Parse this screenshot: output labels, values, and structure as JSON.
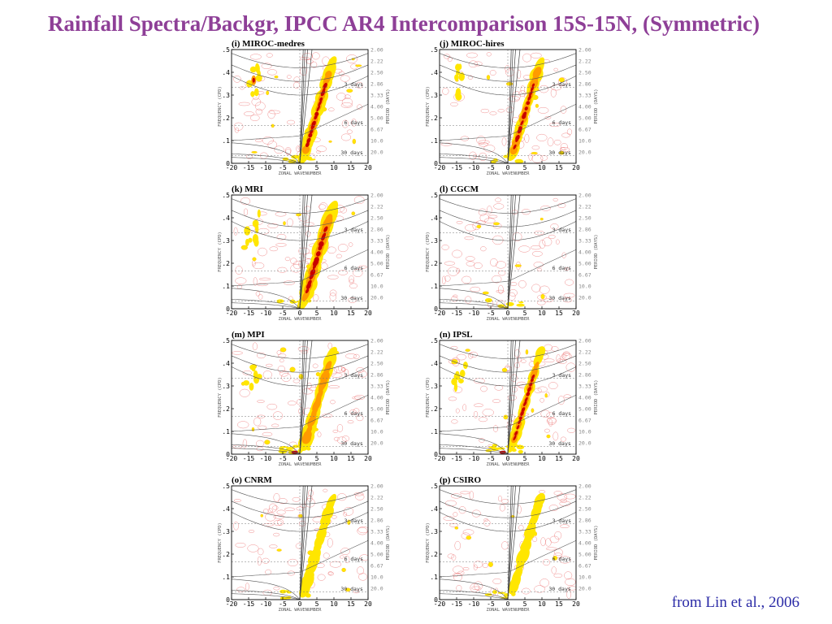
{
  "title": "Rainfall  Spectra/Backgr, IPCC AR4 Intercomparison 15S-15N,  (Symmetric)",
  "citation": "from Lin et al., 2006",
  "colors": {
    "title": "#8e3f97",
    "citation": "#2a2aa6",
    "low": "#ffe600",
    "mid": "#ff9b00",
    "high": "#c80000",
    "contour": "#e85a5a"
  },
  "axes": {
    "xlabel": "ZONAL  WAVENUMBER",
    "ylabel": "FREQUENCY (CPD)",
    "y2label": "PERIOD (DAYS)",
    "xticks": [
      "-20",
      "-15",
      "-10",
      "-5",
      "0",
      "5",
      "10",
      "15",
      "20"
    ],
    "yticks": [
      ".5",
      ".4",
      ".3",
      ".2",
      ".1",
      "0"
    ],
    "period_ticks": [
      "2.00",
      "2.22",
      "2.50",
      "2.86",
      "3.33",
      "4.00",
      "5.00",
      "6.67",
      "10.0",
      "20.0"
    ],
    "day_labels": [
      "3 days",
      "6 days",
      "30 days"
    ]
  },
  "chart_data": [
    {
      "type": "heatmap",
      "title": "(i) MIROC-medres",
      "xlim": [
        -20,
        20
      ],
      "ylim": [
        0,
        0.5
      ],
      "kelvin_intensity": 3,
      "kelvin_width": 1.6,
      "wig_intensity": 2,
      "mjo_intensity": 1
    },
    {
      "type": "heatmap",
      "title": "(j) MIROC-hires",
      "xlim": [
        -20,
        20
      ],
      "ylim": [
        0,
        0.5
      ],
      "kelvin_intensity": 3,
      "kelvin_width": 1.6,
      "wig_intensity": 1,
      "mjo_intensity": 1
    },
    {
      "type": "heatmap",
      "title": "(k) MRI",
      "xlim": [
        -20,
        20
      ],
      "ylim": [
        0,
        0.5
      ],
      "kelvin_intensity": 3,
      "kelvin_width": 2.0,
      "wig_intensity": 1,
      "mjo_intensity": 1
    },
    {
      "type": "heatmap",
      "title": "(l) CGCM",
      "xlim": [
        -20,
        20
      ],
      "ylim": [
        0,
        0.5
      ],
      "kelvin_intensity": 0,
      "kelvin_width": 1.4,
      "wig_intensity": 0,
      "mjo_intensity": 1
    },
    {
      "type": "heatmap",
      "title": "(m) MPI",
      "xlim": [
        -20,
        20
      ],
      "ylim": [
        0,
        0.5
      ],
      "kelvin_intensity": 2,
      "kelvin_width": 1.8,
      "wig_intensity": 1,
      "mjo_intensity": 2
    },
    {
      "type": "heatmap",
      "title": "(n) IPSL",
      "xlim": [
        -20,
        20
      ],
      "ylim": [
        0,
        0.5
      ],
      "kelvin_intensity": 3,
      "kelvin_width": 1.4,
      "wig_intensity": 1,
      "mjo_intensity": 2
    },
    {
      "type": "heatmap",
      "title": "(o) CNRM",
      "xlim": [
        -20,
        20
      ],
      "ylim": [
        0,
        0.5
      ],
      "kelvin_intensity": 1,
      "kelvin_width": 1.4,
      "wig_intensity": 0,
      "mjo_intensity": 1
    },
    {
      "type": "heatmap",
      "title": "(p) CSIRO",
      "xlim": [
        -20,
        20
      ],
      "ylim": [
        0,
        0.5
      ],
      "kelvin_intensity": 1,
      "kelvin_width": 1.4,
      "wig_intensity": 0,
      "mjo_intensity": 1
    }
  ]
}
